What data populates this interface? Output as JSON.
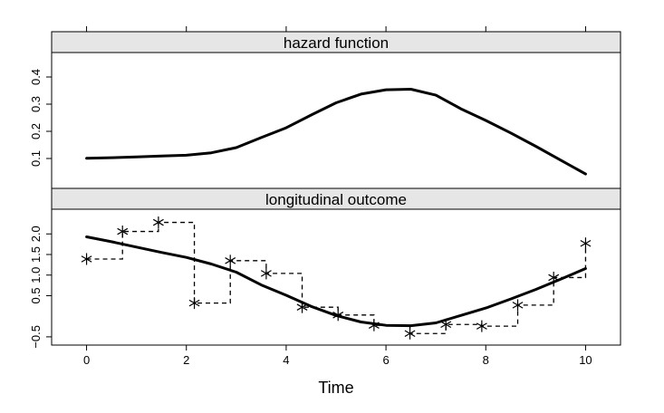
{
  "chart_data": [
    {
      "type": "line",
      "panel_title": "hazard function",
      "xlabel": "Time",
      "ylabel": "",
      "xlim": [
        -0.7,
        10.7
      ],
      "ylim": [
        -0.01,
        0.49
      ],
      "x_ticks": [
        0,
        2,
        4,
        6,
        8,
        10
      ],
      "x_tick_labels": [
        "0",
        "2",
        "4",
        "6",
        "8",
        "10"
      ],
      "y_ticks": [
        0.1,
        0.2,
        0.3,
        0.4
      ],
      "y_tick_labels": [
        "0.1",
        "0.2",
        "0.3",
        "0.4"
      ],
      "grid": false,
      "series": [
        {
          "style": "solid",
          "x": [
            0,
            0.5,
            1,
            1.5,
            2,
            2.5,
            3,
            3.5,
            4,
            4.5,
            5,
            5.5,
            6,
            6.5,
            7,
            7.5,
            8,
            8.5,
            9,
            9.5,
            10
          ],
          "y": [
            0.101,
            0.103,
            0.106,
            0.109,
            0.112,
            0.121,
            0.14,
            0.177,
            0.213,
            0.26,
            0.305,
            0.337,
            0.353,
            0.355,
            0.333,
            0.283,
            0.24,
            0.194,
            0.145,
            0.094,
            0.043
          ]
        }
      ]
    },
    {
      "type": "line",
      "panel_title": "longitudinal outcome",
      "xlabel": "Time",
      "ylabel": "",
      "xlim": [
        -0.7,
        10.7
      ],
      "ylim": [
        -0.7,
        2.6
      ],
      "x_ticks": [
        0,
        2,
        4,
        6,
        8,
        10
      ],
      "x_tick_labels": [
        "0",
        "2",
        "4",
        "6",
        "8",
        "10"
      ],
      "y_ticks": [
        -0.5,
        0.5,
        1.0,
        1.5,
        2.0
      ],
      "y_tick_labels": [
        "−0.5",
        "0.5",
        "1.0",
        "1.5",
        "2.0"
      ],
      "grid": false,
      "series": [
        {
          "style": "solid",
          "x": [
            0,
            0.5,
            1,
            1.5,
            2,
            2.5,
            3,
            3.5,
            4,
            4.5,
            5,
            5.5,
            6,
            6.5,
            7,
            7.5,
            8,
            8.5,
            9,
            9.5,
            10
          ],
          "y": [
            1.93,
            1.81,
            1.68,
            1.55,
            1.43,
            1.27,
            1.07,
            0.76,
            0.51,
            0.24,
            0.02,
            -0.14,
            -0.22,
            -0.23,
            -0.16,
            0.02,
            0.2,
            0.42,
            0.65,
            0.9,
            1.16
          ]
        },
        {
          "style": "dashed-step",
          "x": [
            0,
            0.72,
            1.44,
            2.16,
            2.88,
            3.6,
            4.32,
            5.04,
            5.76,
            6.48,
            7.2,
            7.92,
            8.64,
            9.36,
            10
          ],
          "y": [
            1.39,
            2.06,
            2.28,
            0.32,
            1.35,
            1.04,
            0.22,
            0.03,
            -0.22,
            -0.42,
            -0.2,
            -0.24,
            0.27,
            0.94,
            1.77
          ]
        },
        {
          "style": "markers",
          "marker": "asterisk",
          "x": [
            0,
            0.72,
            1.44,
            2.16,
            2.88,
            3.6,
            4.32,
            5.04,
            5.76,
            6.48,
            7.2,
            7.92,
            8.64,
            9.36,
            10
          ],
          "y": [
            1.39,
            2.06,
            2.28,
            0.32,
            1.35,
            1.04,
            0.22,
            0.03,
            -0.22,
            -0.42,
            -0.2,
            -0.24,
            0.27,
            0.94,
            1.77
          ]
        }
      ]
    }
  ]
}
